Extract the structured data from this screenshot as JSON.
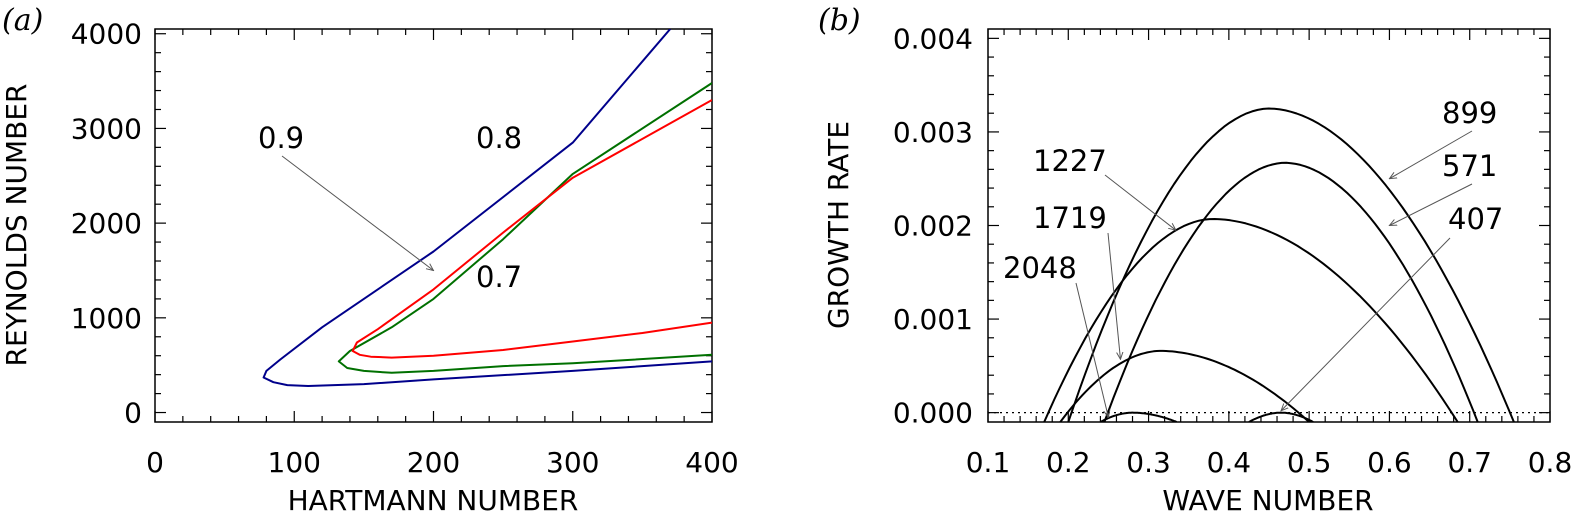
{
  "chart_data": [
    {
      "panel": "(a)",
      "type": "line",
      "xlabel": "HARTMANN NUMBER",
      "ylabel": "REYNOLDS NUMBER",
      "xlim": [
        0,
        400
      ],
      "ylim": [
        -100,
        4050
      ],
      "xticks": [
        0,
        100,
        200,
        300,
        400
      ],
      "yticks": [
        0,
        1000,
        2000,
        3000,
        4000
      ],
      "series": [
        {
          "name": "0.8",
          "color": "#00008b",
          "points": [
            [
              400,
              540
            ],
            [
              300,
              440
            ],
            [
              200,
              350
            ],
            [
              150,
              300
            ],
            [
              110,
              280
            ],
            [
              95,
              290
            ],
            [
              85,
              320
            ],
            [
              78,
              370
            ],
            [
              80,
              440
            ],
            [
              90,
              560
            ],
            [
              120,
              900
            ],
            [
              200,
              1700
            ],
            [
              300,
              2850
            ],
            [
              370,
              4050
            ]
          ]
        },
        {
          "name": "0.9",
          "color": "#007000",
          "points": [
            [
              400,
              610
            ],
            [
              300,
              520
            ],
            [
              250,
              490
            ],
            [
              200,
              440
            ],
            [
              170,
              420
            ],
            [
              150,
              440
            ],
            [
              138,
              470
            ],
            [
              132,
              540
            ],
            [
              140,
              650
            ],
            [
              170,
              900
            ],
            [
              200,
              1200
            ],
            [
              250,
              1830
            ],
            [
              300,
              2520
            ],
            [
              400,
              3480
            ]
          ]
        },
        {
          "name": "0.7",
          "color": "#ff0000",
          "points": [
            [
              400,
              950
            ],
            [
              350,
              840
            ],
            [
              300,
              750
            ],
            [
              250,
              660
            ],
            [
              200,
              600
            ],
            [
              170,
              580
            ],
            [
              155,
              590
            ],
            [
              147,
              610
            ],
            [
              142,
              650
            ],
            [
              145,
              740
            ],
            [
              160,
              880
            ],
            [
              200,
              1300
            ],
            [
              250,
              1900
            ],
            [
              300,
              2480
            ],
            [
              400,
              3300
            ]
          ]
        }
      ],
      "annotations": [
        {
          "text": "0.9",
          "arrow_to": [
            200,
            1500
          ]
        },
        {
          "text": "0.8"
        },
        {
          "text": "0.7"
        }
      ]
    },
    {
      "panel": "(b)",
      "type": "line",
      "xlabel": "WAVE NUMBER",
      "ylabel": "GROWTH RATE",
      "xlim": [
        0.1,
        0.8
      ],
      "ylim": [
        -0.0001,
        0.0041
      ],
      "xticks": [
        0.1,
        0.2,
        0.3,
        0.4,
        0.5,
        0.6,
        0.7,
        0.8
      ],
      "yticks": [
        0.0,
        0.001,
        0.002,
        0.003,
        0.004
      ],
      "xtick_labels": [
        "0.1",
        "0.2",
        "0.3",
        "0.4",
        "0.5",
        "0.6",
        "0.7",
        "0.8"
      ],
      "ytick_labels": [
        "0.000",
        "0.001",
        "0.002",
        "0.003",
        "0.004"
      ],
      "zero_line": 0,
      "series": [
        {
          "name": "899",
          "peak": [
            0.45,
            0.00325
          ],
          "x_range": [
            0.2,
            0.755
          ]
        },
        {
          "name": "571",
          "peak": [
            0.47,
            0.00267
          ],
          "x_range": [
            0.245,
            0.71
          ]
        },
        {
          "name": "1227",
          "peak": [
            0.38,
            0.00207
          ],
          "x_range": [
            0.17,
            0.685
          ]
        },
        {
          "name": "1719",
          "peak": [
            0.315,
            0.00066
          ],
          "x_range": [
            0.19,
            0.5
          ]
        },
        {
          "name": "2048",
          "peak": [
            0.28,
            0.0
          ],
          "x_range": [
            0.24,
            0.335
          ]
        },
        {
          "name": "407",
          "peak": [
            0.465,
            0.0
          ],
          "x_range": [
            0.425,
            0.505
          ]
        }
      ],
      "annotations": [
        {
          "text": "899",
          "arrow_to": [
            0.6,
            0.0025
          ]
        },
        {
          "text": "571",
          "arrow_to": [
            0.6,
            0.002
          ]
        },
        {
          "text": "1227",
          "arrow_to": [
            0.334,
            0.00195
          ]
        },
        {
          "text": "1719",
          "arrow_to": [
            0.265,
            0.00057
          ]
        },
        {
          "text": "2048",
          "arrow_to": [
            0.25,
            -5e-05
          ]
        },
        {
          "text": "407",
          "arrow_to": [
            0.465,
            2e-05
          ]
        }
      ]
    }
  ]
}
